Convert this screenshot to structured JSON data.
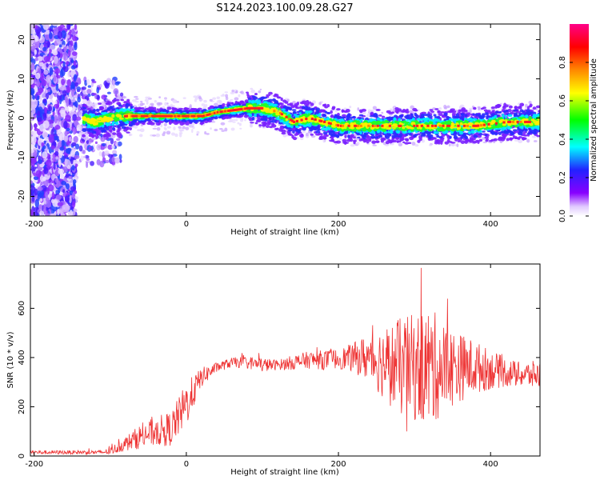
{
  "title": "S124.2023.100.09.28.G27",
  "chart_data": [
    {
      "type": "heatmap",
      "xlabel": "Height of straight line (km)",
      "ylabel": "Frequency (Hz)",
      "xlim": [
        -205,
        465
      ],
      "ylim": [
        -25,
        24
      ],
      "x_ticks": [
        -200,
        0,
        200,
        400
      ],
      "y_ticks": [
        -20,
        -10,
        0,
        10,
        20
      ],
      "colorbar": {
        "label": "Normalized spectral amplitude",
        "range": [
          0,
          1
        ],
        "ticks": [
          "0.0",
          "0.2",
          "0.4",
          "0.6",
          "0.8"
        ],
        "colors": [
          "#ffffff",
          "#8800ff",
          "#2222ff",
          "#00ffff",
          "#00ff00",
          "#ffff00",
          "#ff8800",
          "#ff0000",
          "#ff0088"
        ]
      },
      "ridge": {
        "x": [
          -140,
          -120,
          -100,
          -80,
          -60,
          -40,
          -20,
          0,
          20,
          40,
          60,
          80,
          100,
          120,
          140,
          160,
          180,
          200,
          220,
          240,
          260,
          280,
          300,
          320,
          340,
          360,
          380,
          400,
          420,
          440,
          465
        ],
        "y": [
          0,
          -1,
          0,
          0.5,
          0.5,
          0.5,
          0.5,
          0.5,
          0.5,
          1.5,
          2,
          2.5,
          2.5,
          1.5,
          -1,
          0,
          -1,
          -2,
          -2,
          -2,
          -2,
          -2,
          -2,
          -2,
          -2,
          -2,
          -2,
          -1.5,
          -1,
          -1,
          -1
        ]
      }
    },
    {
      "type": "line",
      "xlabel": "Height of straight line (km)",
      "ylabel": "SNR (10 * v/v)",
      "xlim": [
        -205,
        465
      ],
      "ylim": [
        0,
        780
      ],
      "x_ticks": [
        -200,
        0,
        200,
        400
      ],
      "y_ticks": [
        0,
        200,
        400,
        600
      ],
      "color": "#ee3333",
      "envelope": {
        "x": [
          -205,
          -150,
          -110,
          -100,
          -80,
          -60,
          -40,
          -20,
          0,
          20,
          40,
          60,
          80,
          100,
          120,
          140,
          160,
          180,
          200,
          220,
          240,
          260,
          280,
          300,
          320,
          340,
          360,
          380,
          400,
          420,
          440,
          465
        ],
        "mean": [
          15,
          15,
          15,
          20,
          50,
          80,
          100,
          110,
          210,
          320,
          360,
          380,
          380,
          370,
          370,
          380,
          390,
          390,
          395,
          400,
          400,
          380,
          360,
          360,
          360,
          360,
          360,
          360,
          350,
          340,
          330,
          330
        ],
        "spread": [
          8,
          8,
          8,
          15,
          30,
          50,
          60,
          70,
          90,
          40,
          20,
          20,
          25,
          30,
          20,
          30,
          35,
          40,
          40,
          60,
          100,
          150,
          200,
          220,
          250,
          180,
          140,
          110,
          80,
          60,
          50,
          60
        ]
      }
    }
  ]
}
